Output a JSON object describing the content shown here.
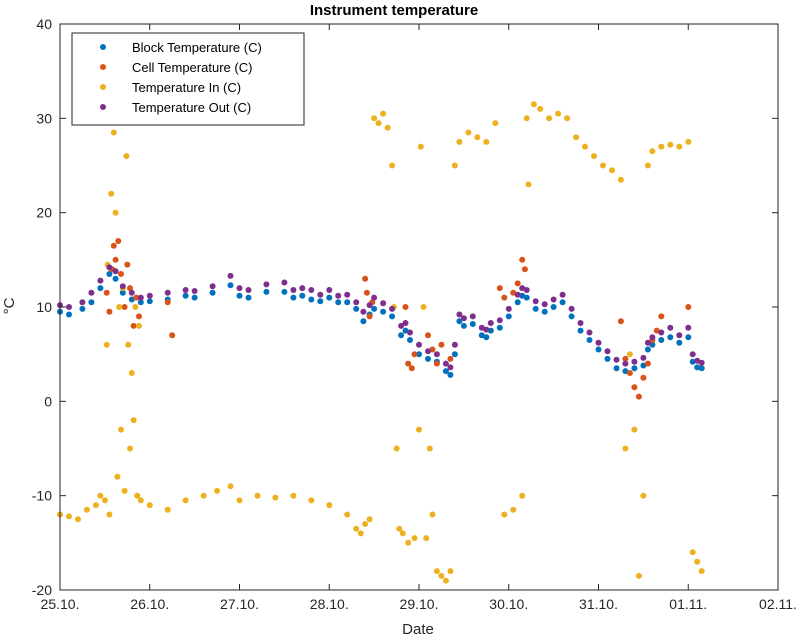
{
  "chart_data": {
    "type": "scatter",
    "title": "Instrument temperature",
    "xlabel": "Date",
    "ylabel": "°C",
    "x_ticks": [
      "25.10.",
      "26.10.",
      "27.10.",
      "28.10.",
      "29.10.",
      "30.10.",
      "31.10.",
      "01.11.",
      "02.11."
    ],
    "y_ticks": [
      -20,
      -10,
      0,
      10,
      20,
      30,
      40
    ],
    "xlim": [
      0,
      8
    ],
    "ylim": [
      -20,
      40
    ],
    "grid": false,
    "legend_position": "top-left",
    "series": [
      {
        "name": "Block Temperature (C)",
        "color": "#0072BD",
        "points": [
          [
            0.0,
            9.5
          ],
          [
            0.1,
            9.2
          ],
          [
            0.25,
            9.8
          ],
          [
            0.35,
            10.5
          ],
          [
            0.45,
            12.0
          ],
          [
            0.55,
            13.5
          ],
          [
            0.62,
            13.0
          ],
          [
            0.7,
            11.5
          ],
          [
            0.8,
            10.8
          ],
          [
            0.9,
            10.5
          ],
          [
            1.0,
            10.6
          ],
          [
            1.2,
            10.8
          ],
          [
            1.4,
            11.2
          ],
          [
            1.5,
            11.0
          ],
          [
            1.7,
            11.5
          ],
          [
            1.9,
            12.3
          ],
          [
            2.0,
            11.2
          ],
          [
            2.1,
            11.0
          ],
          [
            2.3,
            11.6
          ],
          [
            2.5,
            11.6
          ],
          [
            2.6,
            11.0
          ],
          [
            2.7,
            11.2
          ],
          [
            2.8,
            10.8
          ],
          [
            2.9,
            10.6
          ],
          [
            3.0,
            11.0
          ],
          [
            3.1,
            10.5
          ],
          [
            3.2,
            10.5
          ],
          [
            3.3,
            9.8
          ],
          [
            3.38,
            8.5
          ],
          [
            3.45,
            9.2
          ],
          [
            3.5,
            9.8
          ],
          [
            3.6,
            9.5
          ],
          [
            3.7,
            9.0
          ],
          [
            3.8,
            7.0
          ],
          [
            3.85,
            7.5
          ],
          [
            3.9,
            6.5
          ],
          [
            4.0,
            5.0
          ],
          [
            4.1,
            4.5
          ],
          [
            4.2,
            4.2
          ],
          [
            4.3,
            3.2
          ],
          [
            4.35,
            2.8
          ],
          [
            4.4,
            5.0
          ],
          [
            4.45,
            8.5
          ],
          [
            4.5,
            8.0
          ],
          [
            4.6,
            8.2
          ],
          [
            4.7,
            7.0
          ],
          [
            4.75,
            6.8
          ],
          [
            4.8,
            7.5
          ],
          [
            4.9,
            7.8
          ],
          [
            5.0,
            9.0
          ],
          [
            5.1,
            10.5
          ],
          [
            5.15,
            11.2
          ],
          [
            5.2,
            11.0
          ],
          [
            5.3,
            9.8
          ],
          [
            5.4,
            9.5
          ],
          [
            5.5,
            10.0
          ],
          [
            5.6,
            10.5
          ],
          [
            5.7,
            9.0
          ],
          [
            5.8,
            7.5
          ],
          [
            5.9,
            6.5
          ],
          [
            6.0,
            5.5
          ],
          [
            6.1,
            4.5
          ],
          [
            6.2,
            3.5
          ],
          [
            6.3,
            3.2
          ],
          [
            6.4,
            3.5
          ],
          [
            6.5,
            3.8
          ],
          [
            6.55,
            5.5
          ],
          [
            6.6,
            6.0
          ],
          [
            6.7,
            6.5
          ],
          [
            6.8,
            6.8
          ],
          [
            6.9,
            6.2
          ],
          [
            7.0,
            6.8
          ],
          [
            7.05,
            4.2
          ],
          [
            7.1,
            3.6
          ],
          [
            7.15,
            3.5
          ]
        ]
      },
      {
        "name": "Cell Temperature (C)",
        "color": "#D95319",
        "points": [
          [
            0.52,
            11.5
          ],
          [
            0.55,
            9.5
          ],
          [
            0.58,
            14.0
          ],
          [
            0.6,
            16.5
          ],
          [
            0.62,
            15.0
          ],
          [
            0.65,
            17.0
          ],
          [
            0.68,
            13.5
          ],
          [
            0.72,
            10.0
          ],
          [
            0.75,
            14.5
          ],
          [
            0.78,
            12.0
          ],
          [
            0.82,
            8.0
          ],
          [
            0.85,
            11.0
          ],
          [
            0.88,
            9.0
          ],
          [
            1.2,
            10.5
          ],
          [
            1.25,
            7.0
          ],
          [
            3.4,
            13.0
          ],
          [
            3.42,
            11.5
          ],
          [
            3.45,
            9.0
          ],
          [
            3.48,
            10.5
          ],
          [
            3.85,
            10.0
          ],
          [
            3.88,
            4.0
          ],
          [
            3.92,
            3.5
          ],
          [
            3.95,
            5.0
          ],
          [
            4.1,
            7.0
          ],
          [
            4.15,
            5.5
          ],
          [
            4.2,
            4.0
          ],
          [
            4.25,
            6.0
          ],
          [
            4.35,
            4.5
          ],
          [
            4.9,
            12.0
          ],
          [
            4.95,
            11.0
          ],
          [
            5.05,
            11.5
          ],
          [
            5.1,
            12.5
          ],
          [
            5.15,
            15.0
          ],
          [
            5.18,
            14.0
          ],
          [
            6.25,
            8.5
          ],
          [
            6.3,
            4.5
          ],
          [
            6.35,
            3.0
          ],
          [
            6.4,
            1.5
          ],
          [
            6.45,
            0.5
          ],
          [
            6.5,
            2.5
          ],
          [
            6.55,
            4.0
          ],
          [
            6.6,
            6.5
          ],
          [
            6.65,
            7.5
          ],
          [
            6.7,
            9.0
          ],
          [
            7.0,
            10.0
          ]
        ]
      },
      {
        "name": "Temperature In (C)",
        "color": "#EDB120",
        "points": [
          [
            0.0,
            -12.0
          ],
          [
            0.1,
            -12.2
          ],
          [
            0.2,
            -12.5
          ],
          [
            0.3,
            -11.5
          ],
          [
            0.4,
            -11.0
          ],
          [
            0.45,
            -10.0
          ],
          [
            0.5,
            -10.5
          ],
          [
            0.52,
            6.0
          ],
          [
            0.53,
            14.5
          ],
          [
            0.55,
            -12.0
          ],
          [
            0.57,
            22.0
          ],
          [
            0.6,
            28.5
          ],
          [
            0.62,
            20.0
          ],
          [
            0.64,
            -8.0
          ],
          [
            0.66,
            10.0
          ],
          [
            0.68,
            -3.0
          ],
          [
            0.7,
            12.0
          ],
          [
            0.72,
            -9.5
          ],
          [
            0.74,
            26.0
          ],
          [
            0.76,
            6.0
          ],
          [
            0.78,
            -5.0
          ],
          [
            0.8,
            3.0
          ],
          [
            0.82,
            -2.0
          ],
          [
            0.84,
            10.0
          ],
          [
            0.86,
            -10.0
          ],
          [
            0.88,
            8.0
          ],
          [
            0.9,
            -10.5
          ],
          [
            1.0,
            -11.0
          ],
          [
            1.2,
            -11.5
          ],
          [
            1.4,
            -10.5
          ],
          [
            1.6,
            -10.0
          ],
          [
            1.75,
            -9.5
          ],
          [
            1.9,
            -9.0
          ],
          [
            2.0,
            -10.5
          ],
          [
            2.2,
            -10.0
          ],
          [
            2.4,
            -10.2
          ],
          [
            2.6,
            -10.0
          ],
          [
            2.8,
            -10.5
          ],
          [
            3.0,
            -11.0
          ],
          [
            3.2,
            -12.0
          ],
          [
            3.3,
            -13.5
          ],
          [
            3.35,
            -14.0
          ],
          [
            3.4,
            -13.0
          ],
          [
            3.45,
            -12.5
          ],
          [
            3.5,
            30.0
          ],
          [
            3.55,
            29.5
          ],
          [
            3.6,
            30.5
          ],
          [
            3.65,
            29.0
          ],
          [
            3.7,
            25.0
          ],
          [
            3.72,
            10.0
          ],
          [
            3.75,
            -5.0
          ],
          [
            3.78,
            -13.5
          ],
          [
            3.82,
            -14.0
          ],
          [
            3.88,
            -15.0
          ],
          [
            3.95,
            -14.5
          ],
          [
            4.0,
            -3.0
          ],
          [
            4.02,
            27.0
          ],
          [
            4.05,
            10.0
          ],
          [
            4.08,
            -14.5
          ],
          [
            4.12,
            -5.0
          ],
          [
            4.15,
            -12.0
          ],
          [
            4.2,
            -18.0
          ],
          [
            4.25,
            -18.5
          ],
          [
            4.3,
            -19.0
          ],
          [
            4.35,
            -18.0
          ],
          [
            4.4,
            25.0
          ],
          [
            4.45,
            27.5
          ],
          [
            4.55,
            28.5
          ],
          [
            4.65,
            28.0
          ],
          [
            4.75,
            27.5
          ],
          [
            4.85,
            29.5
          ],
          [
            4.95,
            -12.0
          ],
          [
            5.05,
            -11.5
          ],
          [
            5.15,
            -10.0
          ],
          [
            5.2,
            30.0
          ],
          [
            5.22,
            23.0
          ],
          [
            5.28,
            31.5
          ],
          [
            5.35,
            31.0
          ],
          [
            5.45,
            30.0
          ],
          [
            5.55,
            30.5
          ],
          [
            5.65,
            30.0
          ],
          [
            5.75,
            28.0
          ],
          [
            5.85,
            27.0
          ],
          [
            5.95,
            26.0
          ],
          [
            6.05,
            25.0
          ],
          [
            6.15,
            24.5
          ],
          [
            6.25,
            23.5
          ],
          [
            6.3,
            -5.0
          ],
          [
            6.35,
            5.0
          ],
          [
            6.4,
            -3.0
          ],
          [
            6.45,
            -18.5
          ],
          [
            6.5,
            -10.0
          ],
          [
            6.55,
            25.0
          ],
          [
            6.6,
            26.5
          ],
          [
            6.7,
            27.0
          ],
          [
            6.8,
            27.2
          ],
          [
            6.9,
            27.0
          ],
          [
            7.0,
            27.5
          ],
          [
            7.05,
            -16.0
          ],
          [
            7.1,
            -17.0
          ],
          [
            7.15,
            -18.0
          ]
        ]
      },
      {
        "name": "Temperature Out (C)",
        "color": "#7E2F8E",
        "points": [
          [
            0.0,
            10.2
          ],
          [
            0.1,
            10.0
          ],
          [
            0.25,
            10.5
          ],
          [
            0.35,
            11.5
          ],
          [
            0.45,
            12.8
          ],
          [
            0.55,
            14.2
          ],
          [
            0.62,
            13.8
          ],
          [
            0.7,
            12.2
          ],
          [
            0.8,
            11.5
          ],
          [
            0.9,
            11.0
          ],
          [
            1.0,
            11.2
          ],
          [
            1.2,
            11.5
          ],
          [
            1.4,
            11.8
          ],
          [
            1.5,
            11.7
          ],
          [
            1.7,
            12.2
          ],
          [
            1.9,
            13.3
          ],
          [
            2.0,
            12.0
          ],
          [
            2.1,
            11.8
          ],
          [
            2.3,
            12.4
          ],
          [
            2.5,
            12.6
          ],
          [
            2.6,
            11.8
          ],
          [
            2.7,
            12.0
          ],
          [
            2.8,
            11.8
          ],
          [
            2.9,
            11.3
          ],
          [
            3.0,
            11.8
          ],
          [
            3.1,
            11.2
          ],
          [
            3.2,
            11.3
          ],
          [
            3.3,
            10.5
          ],
          [
            3.38,
            9.5
          ],
          [
            3.45,
            10.2
          ],
          [
            3.5,
            11.0
          ],
          [
            3.6,
            10.4
          ],
          [
            3.7,
            9.8
          ],
          [
            3.8,
            8.0
          ],
          [
            3.85,
            8.3
          ],
          [
            3.9,
            7.3
          ],
          [
            4.0,
            6.0
          ],
          [
            4.1,
            5.3
          ],
          [
            4.2,
            5.0
          ],
          [
            4.3,
            4.0
          ],
          [
            4.35,
            3.6
          ],
          [
            4.4,
            6.0
          ],
          [
            4.45,
            9.2
          ],
          [
            4.5,
            8.8
          ],
          [
            4.6,
            9.0
          ],
          [
            4.7,
            7.8
          ],
          [
            4.75,
            7.6
          ],
          [
            4.8,
            8.3
          ],
          [
            4.9,
            8.6
          ],
          [
            5.0,
            9.8
          ],
          [
            5.1,
            11.3
          ],
          [
            5.15,
            12.0
          ],
          [
            5.2,
            11.8
          ],
          [
            5.3,
            10.6
          ],
          [
            5.4,
            10.3
          ],
          [
            5.5,
            10.8
          ],
          [
            5.6,
            11.3
          ],
          [
            5.7,
            9.8
          ],
          [
            5.8,
            8.3
          ],
          [
            5.9,
            7.3
          ],
          [
            6.0,
            6.2
          ],
          [
            6.1,
            5.3
          ],
          [
            6.2,
            4.4
          ],
          [
            6.3,
            4.0
          ],
          [
            6.4,
            4.2
          ],
          [
            6.5,
            4.6
          ],
          [
            6.55,
            6.2
          ],
          [
            6.6,
            6.8
          ],
          [
            6.7,
            7.3
          ],
          [
            6.8,
            7.8
          ],
          [
            6.9,
            7.0
          ],
          [
            7.0,
            7.8
          ],
          [
            7.05,
            5.0
          ],
          [
            7.1,
            4.3
          ],
          [
            7.15,
            4.1
          ]
        ]
      }
    ]
  }
}
